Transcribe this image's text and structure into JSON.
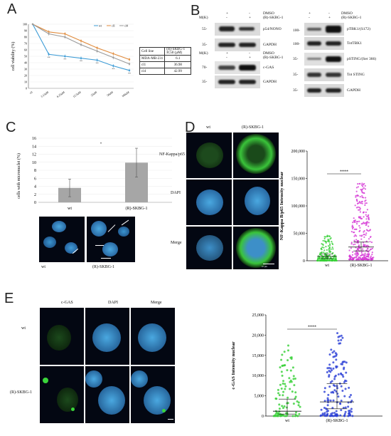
{
  "panels": {
    "A": "A",
    "B": "B",
    "C": "C",
    "D": "D",
    "E": "E"
  },
  "panelA": {
    "ylabel": "cell viability (%)",
    "yticks": [
      "0",
      "10",
      "20",
      "30",
      "40",
      "50",
      "60",
      "70",
      "80",
      "90",
      "100"
    ],
    "xticks": [
      "c0",
      "3.13uM",
      "6.25uM",
      "12.5uM",
      "25uM",
      "50uM",
      "100uM"
    ],
    "legend": [
      "wt",
      "cl1",
      "cl4"
    ],
    "colors": [
      "#3b9bd6",
      "#e08a3a",
      "#9a9a9a"
    ],
    "stars": "**",
    "table": {
      "header": [
        "Cell line",
        "(R)-SKBG-1 IC50 (µM)"
      ],
      "rows": [
        [
          "MDA-MB-231",
          "6.1"
        ],
        [
          "cl1",
          "36.98"
        ],
        [
          "cl4",
          "42.99"
        ]
      ]
    }
  },
  "chart_data": [
    {
      "type": "line",
      "categories": [
        "c0",
        "3.13uM",
        "6.25uM",
        "12.5uM",
        "25uM",
        "50uM",
        "100uM"
      ],
      "series": [
        {
          "name": "wt",
          "values": [
            100,
            53,
            50,
            47,
            44,
            35,
            28
          ]
        },
        {
          "name": "cl1",
          "values": [
            100,
            88,
            85,
            74,
            63,
            54,
            45
          ]
        },
        {
          "name": "cl4",
          "values": [
            100,
            85,
            80,
            68,
            58,
            48,
            38
          ]
        }
      ],
      "ylabel": "cell viability (%)",
      "ylim": [
        0,
        100
      ]
    },
    {
      "type": "bar",
      "categories": [
        "wt",
        "(R)-SKBG-1"
      ],
      "values": [
        3.6,
        9.9
      ],
      "errors": [
        2.2,
        3.6
      ],
      "ylabel": "cells with micronuclei (%)",
      "ylim": [
        0,
        16
      ]
    }
  ],
  "panelB": {
    "blot1": {
      "treat": [
        "DMSO",
        "(R)-SKBG-1"
      ],
      "signs": [
        [
          "+",
          "-"
        ],
        [
          "-",
          "+"
        ]
      ],
      "mk": "M(K)",
      "markers": [
        "55-",
        "35-"
      ],
      "bands": [
        "p54/NONO",
        "GAPDH"
      ]
    },
    "blot2": {
      "treat": [
        "DMSO",
        "(R)-SKBG-1"
      ],
      "signs": [
        [
          "+",
          "-"
        ],
        [
          "-",
          "+"
        ]
      ],
      "mk": "M(K)",
      "markers": [
        "70-",
        "35-"
      ],
      "bands": [
        "c-GAS",
        "GAPDH"
      ]
    },
    "blot3": {
      "treat": [
        "DMSO",
        "(R)-SKBG-1"
      ],
      "signs": [
        [
          "+",
          "-"
        ],
        [
          "-",
          "+"
        ]
      ],
      "markers": [
        "100-",
        "100-",
        "35-",
        "35-",
        "35-"
      ],
      "bands": [
        "pTBK1/(S172)",
        "TotTBK1",
        "pSTING/(Ser 366)",
        "Tot STING",
        "GAPDH"
      ]
    }
  },
  "panelC": {
    "ylabel": "cells with micronuclei (%)",
    "yticks": [
      "0",
      "2",
      "4",
      "6",
      "8",
      "10",
      "12",
      "14",
      "16"
    ],
    "xticks": [
      "wt",
      "(R)-SKBG-1"
    ],
    "img_labels": [
      "wt",
      "(R)-SKBG-1"
    ]
  },
  "panelD": {
    "col_labels": [
      "wt",
      "(R)-SKBG-1"
    ],
    "row_labels": [
      "NF-Kappa/p65",
      "DAPI",
      "Merge"
    ],
    "ylabel": "NF-Kappa B/p65 Intensity nuclear",
    "yticks": [
      "0",
      "50,000",
      "100,000",
      "150,000",
      "200,000"
    ],
    "xticks": [
      "wt",
      "(R)-SKBG-1"
    ],
    "sig": "****",
    "scale": "10 µm"
  },
  "panelE": {
    "col_labels": [
      "c-GAS",
      "DAPI",
      "Merge"
    ],
    "row_labels": [
      "wt",
      "(R)-SKBG-1"
    ],
    "ylabel": "c-GAS Intensity nuclear",
    "yticks": [
      "0",
      "5,000",
      "10,000",
      "15,000",
      "20,000",
      "25,000"
    ],
    "xticks": [
      "wt",
      "(R)-SKBG-1"
    ],
    "sig": "****"
  }
}
